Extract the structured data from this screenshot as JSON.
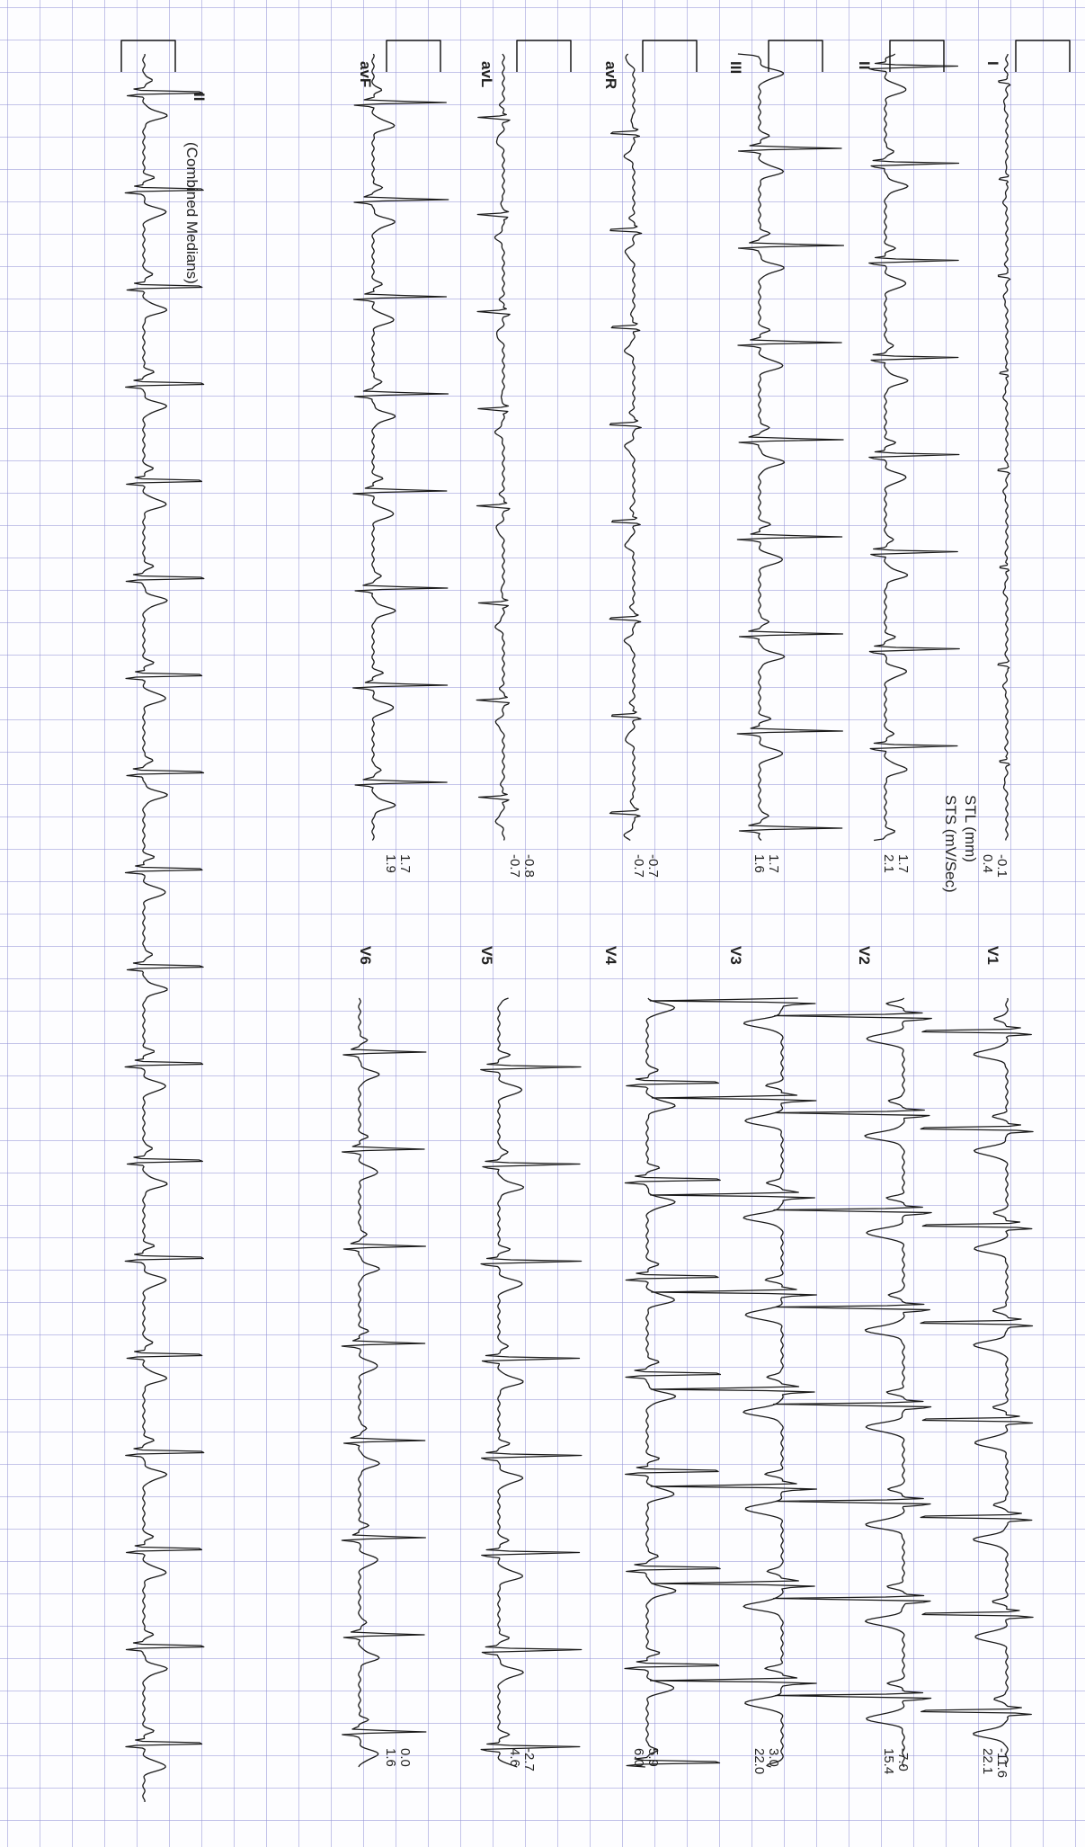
{
  "leads": {
    "I": "I",
    "II": "II",
    "III": "III",
    "aVR": "avR",
    "aVL": "avL",
    "aVF": "avF",
    "V1": "V1",
    "V2": "V2",
    "V3": "V3",
    "V4": "V4",
    "V5": "V5",
    "V6": "V6",
    "rhythm": "II"
  },
  "combined_medians": "(Combined Medians)",
  "st_labels": {
    "stl": "STL (mm)",
    "sts": "STS (mV/Sec)"
  },
  "measurements": {
    "I": {
      "stl": "-0.1",
      "sts": "0.4"
    },
    "II": {
      "stl": "1.7",
      "sts": "2.1"
    },
    "III": {
      "stl": "1.7",
      "sts": "1.6"
    },
    "aVR": {
      "stl": "-0.7",
      "sts": "-0.7"
    },
    "aVL": {
      "stl": "-0.8",
      "sts": "-0.7"
    },
    "aVF": {
      "stl": "1.7",
      "sts": "1.9"
    },
    "V1": {
      "stl": "-11.6",
      "sts": "22.1"
    },
    "V2": {
      "stl": "-7.0",
      "sts": "15.4"
    },
    "V3": {
      "stl": "3.0",
      "sts": "22.0"
    },
    "V4": {
      "stl": "5.9",
      "sts": "6.0"
    },
    "V5": {
      "stl": "-2.7",
      "sts": "4.6"
    },
    "V6": {
      "stl": "0.0",
      "sts": "1.6"
    }
  },
  "colors": {
    "grid": "#9696d7",
    "trace": "#1a1a1a",
    "text": "#222222"
  }
}
